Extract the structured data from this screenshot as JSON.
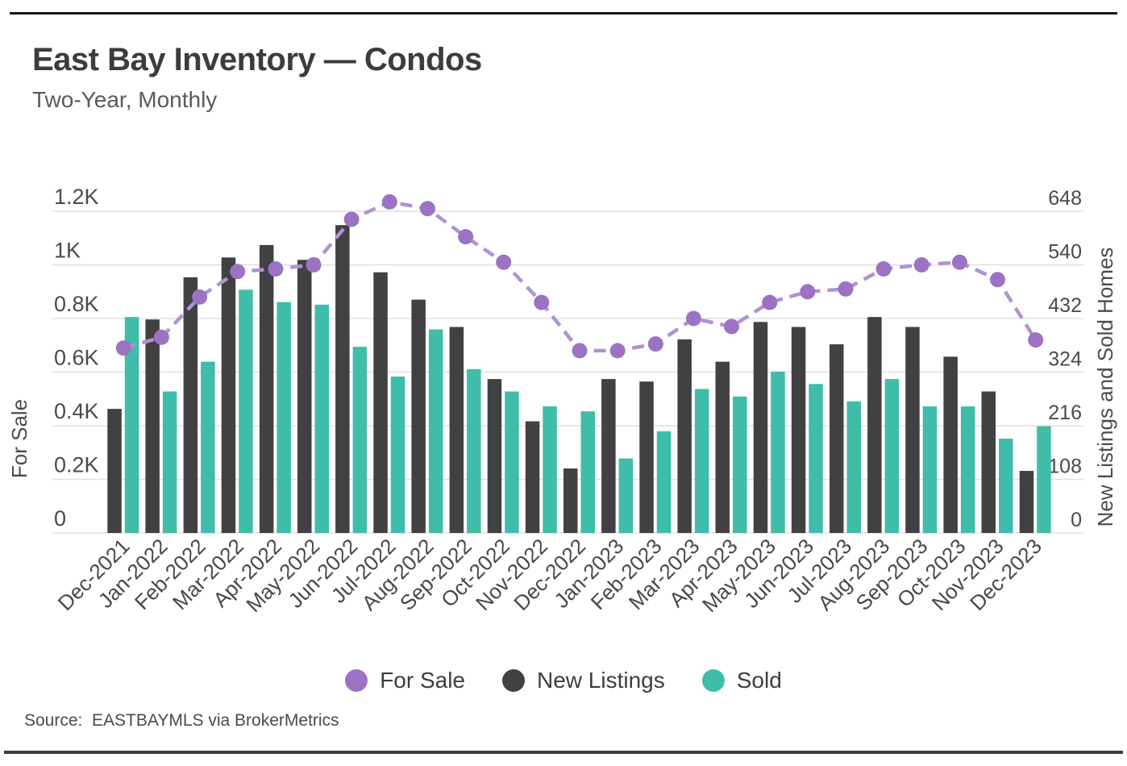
{
  "header": {
    "title": "East Bay Inventory — Condos",
    "subtitle": "Two-Year, Monthly"
  },
  "source": "Source:  EASTBAYMLS via BrokerMetrics",
  "colors": {
    "for_sale_dot": "#9c73c3",
    "for_sale_line": "#b093d1",
    "new_listings": "#414043",
    "sold": "#3fbda9",
    "gridline": "#e0e0e0",
    "title_text": "#3c3c3c",
    "axis_text": "#4b4b4b"
  },
  "legend": {
    "items": [
      {
        "label": "For Sale",
        "color": "#9c73c3"
      },
      {
        "label": "New Listings",
        "color": "#414043"
      },
      {
        "label": "Sold",
        "color": "#3fbda9"
      }
    ]
  },
  "chart_data": {
    "type": "bar+line",
    "title": "East Bay Inventory — Condos",
    "subtitle": "Two-Year, Monthly",
    "grid": true,
    "legend_position": "bottom",
    "categories": [
      "Dec-2021",
      "Jan-2022",
      "Feb-2022",
      "Mar-2022",
      "Apr-2022",
      "May-2022",
      "Jun-2022",
      "Jul-2022",
      "Aug-2022",
      "Sep-2022",
      "Oct-2022",
      "Nov-2022",
      "Dec-2022",
      "Jan-2023",
      "Feb-2023",
      "Mar-2023",
      "Apr-2023",
      "May-2023",
      "Jun-2023",
      "Jul-2023",
      "Aug-2023",
      "Sep-2023",
      "Oct-2023",
      "Nov-2023",
      "Dec-2023"
    ],
    "series": [
      {
        "name": "For Sale",
        "type": "line",
        "axis": "left",
        "color": "#9c73c3",
        "line_color": "#b093d1",
        "values": [
          690,
          730,
          880,
          975,
          985,
          1000,
          1170,
          1235,
          1210,
          1105,
          1010,
          860,
          680,
          680,
          705,
          800,
          770,
          860,
          900,
          910,
          985,
          1000,
          1010,
          945,
          720
        ]
      },
      {
        "name": "New Listings",
        "type": "bar",
        "axis": "right",
        "color": "#414043",
        "values": [
          250,
          430,
          515,
          555,
          580,
          550,
          620,
          525,
          470,
          415,
          310,
          225,
          130,
          310,
          305,
          390,
          345,
          425,
          415,
          380,
          435,
          415,
          355,
          285,
          125
        ]
      },
      {
        "name": "Sold",
        "type": "bar",
        "axis": "right",
        "color": "#3fbda9",
        "values": [
          435,
          285,
          345,
          490,
          465,
          460,
          375,
          315,
          410,
          330,
          285,
          255,
          245,
          150,
          205,
          290,
          275,
          325,
          300,
          265,
          310,
          255,
          255,
          190,
          215
        ]
      }
    ],
    "left_axis": {
      "label": "For Sale",
      "ylim": [
        0,
        1200
      ],
      "tick_values": [
        0,
        200,
        400,
        600,
        800,
        1000,
        1200
      ],
      "tick_labels": [
        "0",
        "0.2K",
        "0.4K",
        "0.6K",
        "0.8K",
        "1K",
        "1.2K"
      ]
    },
    "right_axis": {
      "label": "New Listings and Sold Homes",
      "ylim": [
        0,
        648
      ],
      "tick_values": [
        0,
        108,
        216,
        324,
        432,
        540,
        648
      ],
      "tick_labels": [
        "0",
        "108",
        "216",
        "324",
        "432",
        "540",
        "648"
      ]
    }
  }
}
